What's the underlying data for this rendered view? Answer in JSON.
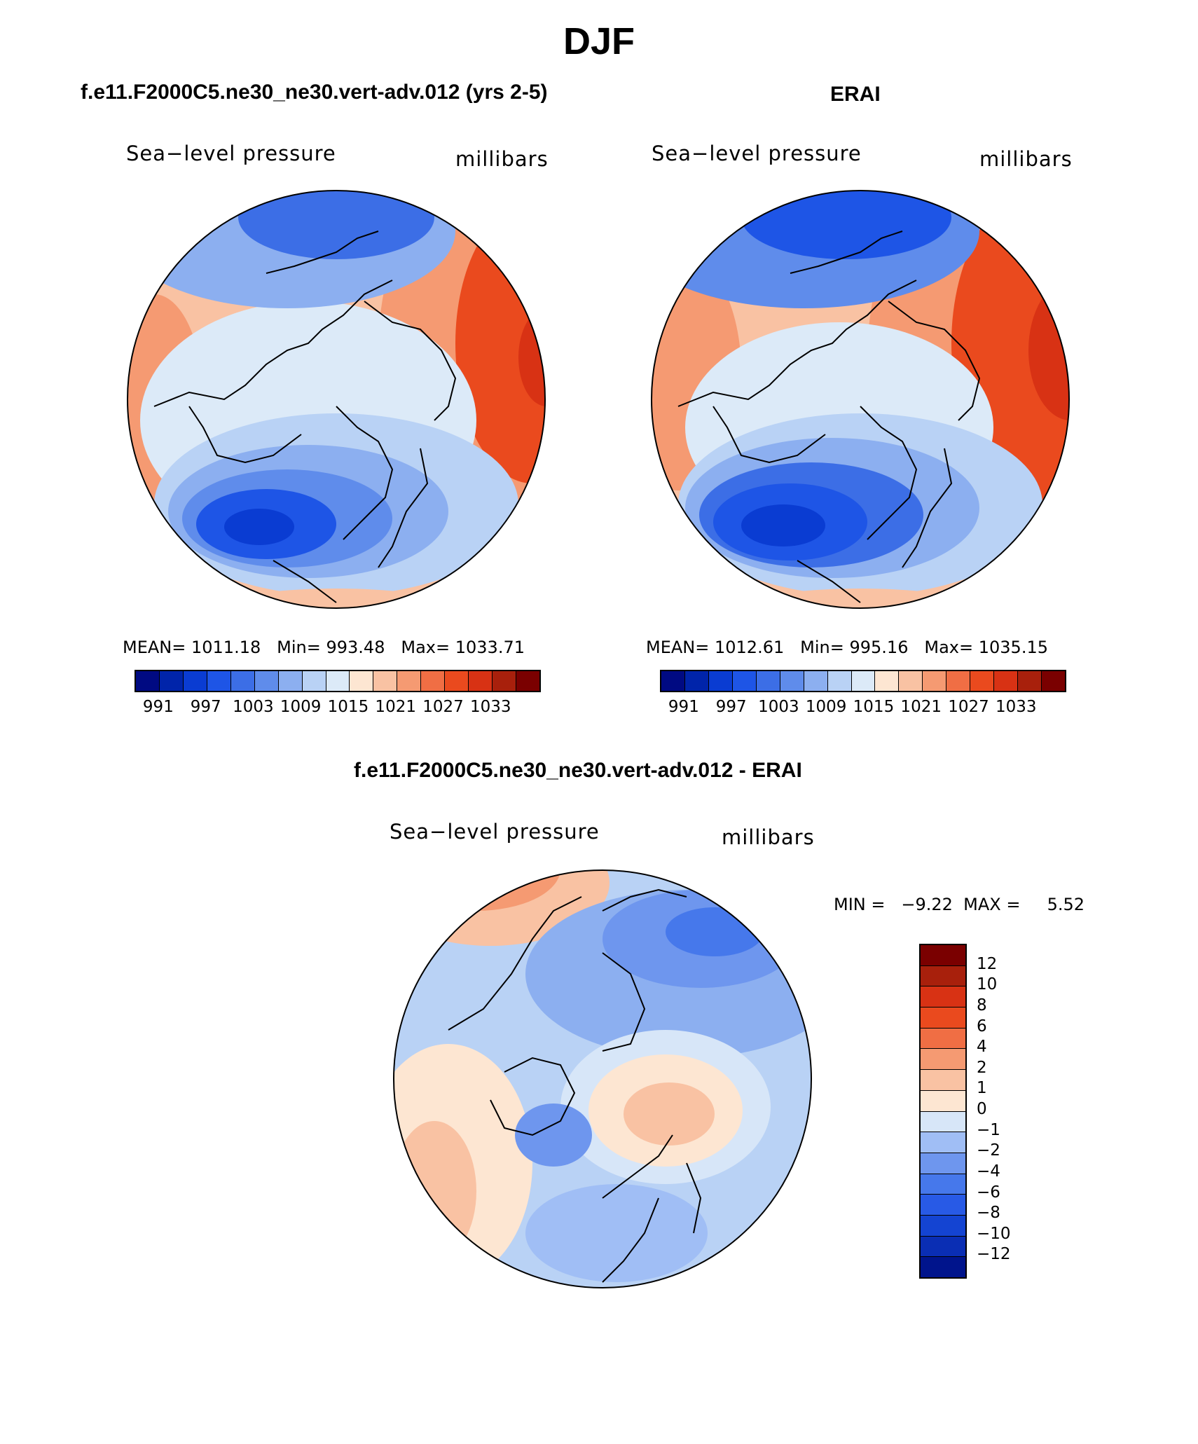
{
  "figure": {
    "title": "DJF",
    "variable": "Sea−level pressure",
    "units": "millibars"
  },
  "colors": {
    "abs_palette": [
      "#000a82",
      "#0024aa",
      "#0a3cd2",
      "#1e55e6",
      "#3c6ee6",
      "#5f8ceb",
      "#8caff0",
      "#b9d2f5",
      "#dceaf8",
      "#fde6d2",
      "#f9c2a3",
      "#f59a72",
      "#f06e44",
      "#ea4a1e",
      "#d83214",
      "#a8200c",
      "#7a0000"
    ],
    "diff_palette": [
      "#00148c",
      "#0a2eb4",
      "#1444d2",
      "#285ae6",
      "#4678eb",
      "#6e96ee",
      "#a0beF5",
      "#d7e6f8",
      "#fde6d2",
      "#f9c2a3",
      "#f59a72",
      "#f06e44",
      "#ea4a1e",
      "#d83214",
      "#a8200c",
      "#7a0000"
    ]
  },
  "panels": {
    "model": {
      "heading": "f.e11.F2000C5.ne30_ne30.vert-adv.012 (yrs 2-5)",
      "left_label": "Sea−level pressure",
      "right_label": "millibars",
      "stats": {
        "mean_label": "MEAN=",
        "mean": "1011.18",
        "min_label": "Min=",
        "min": "993.48",
        "max_label": "Max=",
        "max": "1033.71"
      },
      "colorbar_ticks": [
        "991",
        "997",
        "1003",
        "1009",
        "1015",
        "1021",
        "1027",
        "1033"
      ]
    },
    "obs": {
      "heading": "ERAI",
      "left_label": "Sea−level pressure",
      "right_label": "millibars",
      "stats": {
        "mean_label": "MEAN=",
        "mean": "1012.61",
        "min_label": "Min=",
        "min": "995.16",
        "max_label": "Max=",
        "max": "1035.15"
      },
      "colorbar_ticks": [
        "991",
        "997",
        "1003",
        "1009",
        "1015",
        "1021",
        "1027",
        "1033"
      ]
    },
    "diff": {
      "heading": "f.e11.F2000C5.ne30_ne30.vert-adv.012 - ERAI",
      "left_label": "Sea−level pressure",
      "right_label": "millibars",
      "minmax": "MIN =   −9.22  MAX =     5.52",
      "colorbar_ticks": [
        "12",
        "10",
        "8",
        "6",
        "4",
        "2",
        "1",
        "0",
        "−1",
        "−2",
        "−4",
        "−6",
        "−8",
        "−10",
        "−12"
      ]
    }
  },
  "chart_data": [
    {
      "type": "heatmap",
      "title": "f.e11.F2000C5.ne30_ne30.vert-adv.012 (yrs 2-5)",
      "projection": "north polar stereographic",
      "field": "Sea-level pressure (DJF)",
      "units": "millibars",
      "mean": 1011.18,
      "min": 993.48,
      "max": 1033.71,
      "contour_levels": [
        991,
        994,
        997,
        1000,
        1003,
        1006,
        1009,
        1012,
        1015,
        1018,
        1021,
        1024,
        1027,
        1030,
        1033,
        1036
      ]
    },
    {
      "type": "heatmap",
      "title": "ERAI",
      "projection": "north polar stereographic",
      "field": "Sea-level pressure (DJF)",
      "units": "millibars",
      "mean": 1012.61,
      "min": 995.16,
      "max": 1035.15,
      "contour_levels": [
        991,
        994,
        997,
        1000,
        1003,
        1006,
        1009,
        1012,
        1015,
        1018,
        1021,
        1024,
        1027,
        1030,
        1033,
        1036
      ]
    },
    {
      "type": "heatmap",
      "title": "f.e11.F2000C5.ne30_ne30.vert-adv.012 - ERAI",
      "projection": "north polar stereographic",
      "field": "Sea-level pressure difference (DJF)",
      "units": "millibars",
      "min": -9.22,
      "max": 5.52,
      "contour_levels": [
        -12,
        -10,
        -8,
        -6,
        -4,
        -2,
        -1,
        0,
        1,
        2,
        4,
        6,
        8,
        10,
        12
      ]
    }
  ]
}
